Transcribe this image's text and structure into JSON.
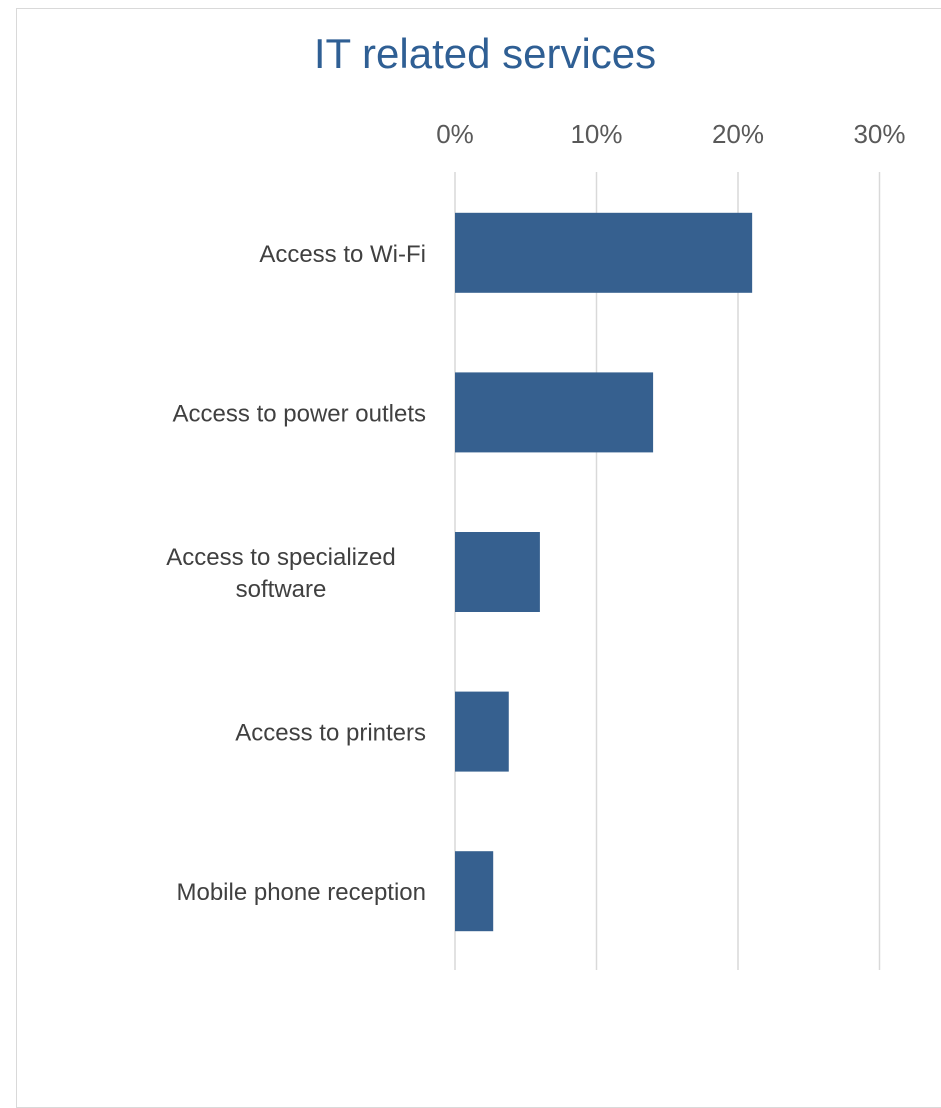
{
  "chart_data": {
    "type": "bar",
    "orientation": "horizontal",
    "title": "IT related services",
    "categories": [
      "Access to Wi-Fi",
      "Access to power outlets",
      "Access to specialized software",
      "Access to printers",
      "Mobile phone reception"
    ],
    "category_lines": [
      [
        "Access to Wi-Fi"
      ],
      [
        "Access to power outlets"
      ],
      [
        "Access to specialized",
        "software"
      ],
      [
        "Access to printers"
      ],
      [
        "Mobile phone reception"
      ]
    ],
    "values": [
      21,
      14,
      6,
      3.8,
      2.7
    ],
    "value_unit": "%",
    "xlim": [
      0,
      30
    ],
    "xticks": [
      0,
      10,
      20,
      30
    ],
    "xtick_labels": [
      "0%",
      "10%",
      "20%",
      "30%"
    ],
    "x_axis_position": "top",
    "grid": true,
    "bar_color": "#36608f",
    "grid_color": "#d9d9d9"
  }
}
